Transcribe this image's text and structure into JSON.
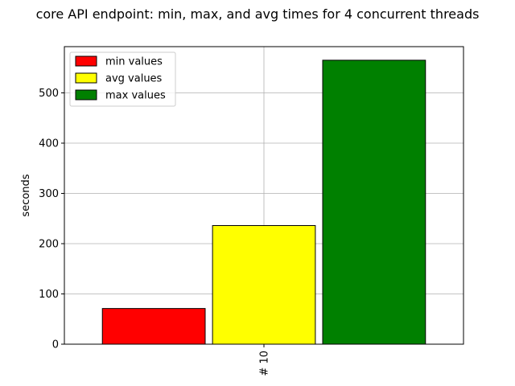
{
  "chart_data": {
    "type": "bar",
    "title": "core API endpoint: min, max, and avg times for 4 concurrent threads",
    "xlabel": "",
    "ylabel": "seconds",
    "categories": [
      "# 10"
    ],
    "series": [
      {
        "name": "min values",
        "values": [
          71
        ],
        "color": "#ff0000"
      },
      {
        "name": "avg values",
        "values": [
          236
        ],
        "color": "#ffff00"
      },
      {
        "name": "max values",
        "values": [
          565
        ],
        "color": "#008000"
      }
    ],
    "ylim": [
      0,
      592
    ],
    "yticks": [
      0,
      100,
      200,
      300,
      400,
      500
    ],
    "grid": true,
    "legend_position": "upper-left",
    "xtick_rotation": "vertical"
  }
}
